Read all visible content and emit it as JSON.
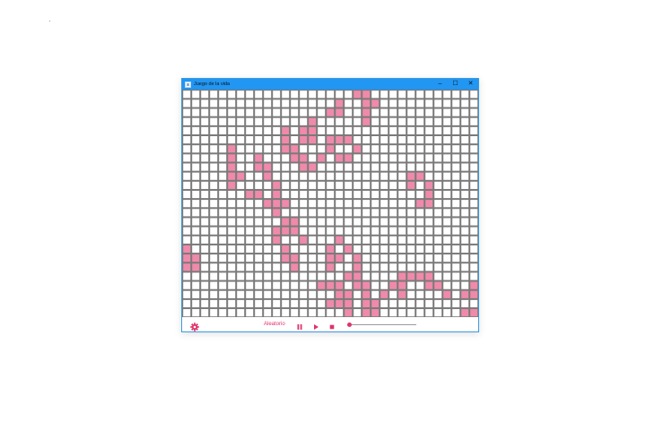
{
  "window": {
    "title": "Juego de la vida",
    "controls": {
      "minimize": "–",
      "maximize": "☐",
      "close": "✕"
    }
  },
  "board": {
    "cols": 33,
    "rows": 25,
    "alive_color": "#f08aaa",
    "dead_color": "#ffffff",
    "grid_color": "#7a7a7a",
    "alive_cells": [
      [
        0,
        19
      ],
      [
        0,
        20
      ],
      [
        1,
        17
      ],
      [
        1,
        20
      ],
      [
        1,
        21
      ],
      [
        2,
        16
      ],
      [
        2,
        17
      ],
      [
        2,
        20
      ],
      [
        3,
        14
      ],
      [
        3,
        20
      ],
      [
        4,
        11
      ],
      [
        4,
        13
      ],
      [
        4,
        14
      ],
      [
        5,
        11
      ],
      [
        5,
        13
      ],
      [
        5,
        14
      ],
      [
        5,
        16
      ],
      [
        5,
        17
      ],
      [
        5,
        18
      ],
      [
        6,
        5
      ],
      [
        6,
        11
      ],
      [
        6,
        12
      ],
      [
        6,
        16
      ],
      [
        6,
        19
      ],
      [
        7,
        5
      ],
      [
        7,
        8
      ],
      [
        7,
        12
      ],
      [
        7,
        13
      ],
      [
        7,
        15
      ],
      [
        7,
        17
      ],
      [
        7,
        18
      ],
      [
        8,
        5
      ],
      [
        8,
        8
      ],
      [
        8,
        9
      ],
      [
        8,
        13
      ],
      [
        8,
        14
      ],
      [
        9,
        5
      ],
      [
        9,
        6
      ],
      [
        9,
        9
      ],
      [
        9,
        25
      ],
      [
        9,
        26
      ],
      [
        10,
        5
      ],
      [
        10,
        10
      ],
      [
        10,
        25
      ],
      [
        10,
        27
      ],
      [
        11,
        7
      ],
      [
        11,
        8
      ],
      [
        11,
        10
      ],
      [
        11,
        27
      ],
      [
        12,
        9
      ],
      [
        12,
        10
      ],
      [
        12,
        11
      ],
      [
        12,
        26
      ],
      [
        12,
        27
      ],
      [
        13,
        10
      ],
      [
        14,
        11
      ],
      [
        14,
        12
      ],
      [
        15,
        10
      ],
      [
        15,
        11
      ],
      [
        15,
        12
      ],
      [
        16,
        10
      ],
      [
        16,
        13
      ],
      [
        16,
        17
      ],
      [
        17,
        0
      ],
      [
        17,
        11
      ],
      [
        17,
        16
      ],
      [
        17,
        18
      ],
      [
        18,
        0
      ],
      [
        18,
        1
      ],
      [
        18,
        11
      ],
      [
        18,
        12
      ],
      [
        18,
        16
      ],
      [
        18,
        17
      ],
      [
        18,
        19
      ],
      [
        19,
        0
      ],
      [
        19,
        1
      ],
      [
        19,
        12
      ],
      [
        19,
        16
      ],
      [
        19,
        19
      ],
      [
        20,
        18
      ],
      [
        20,
        19
      ],
      [
        20,
        24
      ],
      [
        20,
        25
      ],
      [
        20,
        26
      ],
      [
        20,
        27
      ],
      [
        21,
        15
      ],
      [
        21,
        16
      ],
      [
        21,
        17
      ],
      [
        21,
        19
      ],
      [
        21,
        20
      ],
      [
        21,
        23
      ],
      [
        21,
        24
      ],
      [
        21,
        27
      ],
      [
        21,
        28
      ],
      [
        21,
        32
      ],
      [
        22,
        17
      ],
      [
        22,
        18
      ],
      [
        22,
        20
      ],
      [
        22,
        22
      ],
      [
        22,
        24
      ],
      [
        22,
        29
      ],
      [
        22,
        31
      ],
      [
        22,
        32
      ],
      [
        23,
        16
      ],
      [
        23,
        17
      ],
      [
        23,
        18
      ],
      [
        23,
        20
      ],
      [
        23,
        21
      ],
      [
        24,
        18
      ],
      [
        24,
        20
      ],
      [
        24,
        21
      ],
      [
        24,
        31
      ],
      [
        24,
        32
      ]
    ]
  },
  "toolbar": {
    "settings_icon": "gear-icon",
    "random_label": "Aleatorio",
    "pause_icon": "pause-icon",
    "play_icon": "play-icon",
    "stop_icon": "stop-icon",
    "speed_value": 0.02,
    "accent_color": "#e0336a"
  }
}
